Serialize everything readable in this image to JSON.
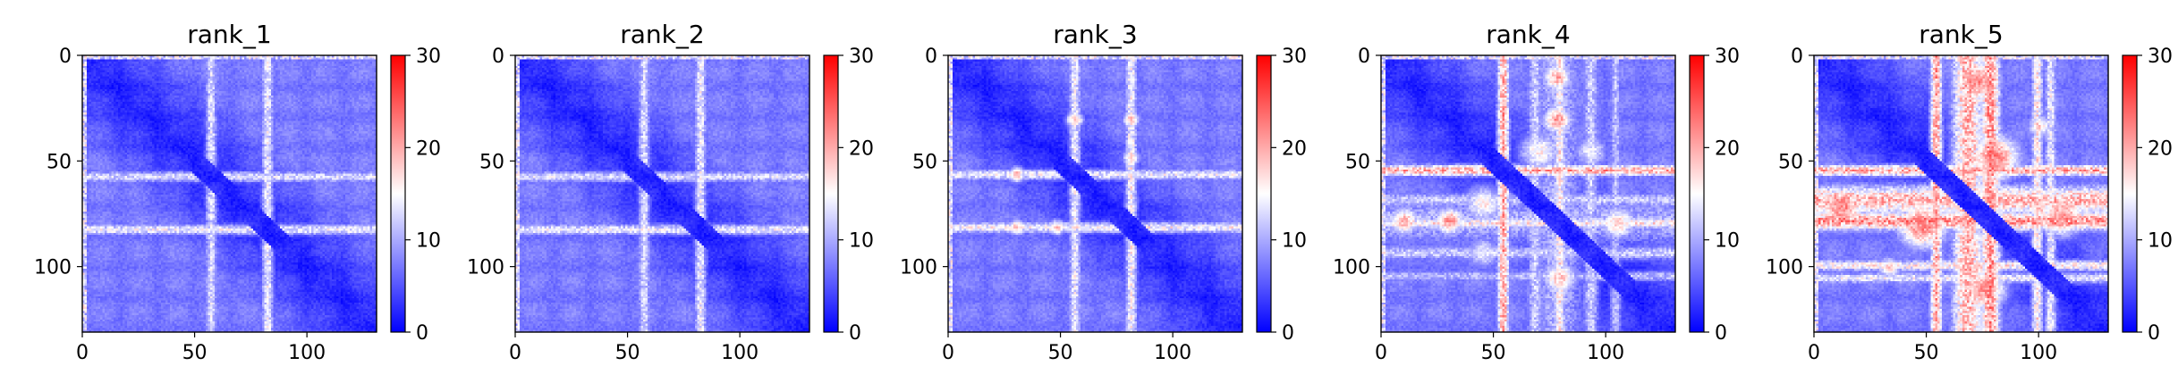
{
  "chart_data": [
    {
      "type": "heatmap",
      "title": "rank_1",
      "xlabel": "",
      "ylabel": "",
      "xlim": [
        0,
        131
      ],
      "ylim": [
        131,
        0
      ],
      "x_ticks": [
        "0",
        "50",
        "100"
      ],
      "y_ticks": [
        "0",
        "50",
        "100"
      ],
      "colorbar": {
        "min": 0,
        "max": 30,
        "ticks": [
          "0",
          "10",
          "20",
          "30"
        ],
        "colormap": "bwr"
      },
      "bands": [
        {
          "center": 57,
          "width": 3,
          "value": 13
        },
        {
          "center": 82,
          "width": 3,
          "value": 14
        }
      ],
      "vbands": [],
      "blobs": []
    },
    {
      "type": "heatmap",
      "title": "rank_2",
      "xlabel": "",
      "ylabel": "",
      "xlim": [
        0,
        131
      ],
      "ylim": [
        131,
        0
      ],
      "x_ticks": [
        "0",
        "50",
        "100"
      ],
      "y_ticks": [
        "0",
        "50",
        "100"
      ],
      "colorbar": {
        "min": 0,
        "max": 30,
        "ticks": [
          "0",
          "10",
          "20",
          "30"
        ],
        "colormap": "bwr"
      },
      "bands": [
        {
          "center": 57,
          "width": 3,
          "value": 13
        },
        {
          "center": 82,
          "width": 3,
          "value": 14
        }
      ],
      "vbands": [],
      "blobs": []
    },
    {
      "type": "heatmap",
      "title": "rank_3",
      "xlabel": "",
      "ylabel": "",
      "xlim": [
        0,
        131
      ],
      "ylim": [
        131,
        0
      ],
      "x_ticks": [
        "0",
        "50",
        "100"
      ],
      "y_ticks": [
        "0",
        "50",
        "100"
      ],
      "colorbar": {
        "min": 0,
        "max": 30,
        "ticks": [
          "0",
          "10",
          "20",
          "30"
        ],
        "colormap": "bwr"
      },
      "bands": [
        {
          "center": 56,
          "width": 3,
          "value": 14
        },
        {
          "center": 81,
          "width": 3,
          "value": 15
        }
      ],
      "vbands": [],
      "blobs": [
        {
          "x": 30,
          "y": 56,
          "r": 3,
          "value": 19
        },
        {
          "x": 30,
          "y": 81,
          "r": 3,
          "value": 19
        },
        {
          "x": 48,
          "y": 81,
          "r": 3,
          "value": 18
        }
      ]
    },
    {
      "type": "heatmap",
      "title": "rank_4",
      "xlabel": "",
      "ylabel": "",
      "xlim": [
        0,
        131
      ],
      "ylim": [
        131,
        0
      ],
      "x_ticks": [
        "0",
        "50",
        "100"
      ],
      "y_ticks": [
        "0",
        "50",
        "100"
      ],
      "colorbar": {
        "min": 0,
        "max": 30,
        "ticks": [
          "0",
          "10",
          "20",
          "30"
        ],
        "colormap": "bwr"
      },
      "bands": [
        {
          "center": 54,
          "width": 3,
          "value": 20
        },
        {
          "center": 68,
          "width": 4,
          "value": 12
        },
        {
          "center": 79,
          "width": 3,
          "value": 16
        },
        {
          "center": 93,
          "width": 4,
          "value": 12
        },
        {
          "center": 104,
          "width": 3,
          "value": 11
        }
      ],
      "vbands": [
        {
          "center": 78,
          "width": 14,
          "value": 11
        }
      ],
      "blobs": [
        {
          "x": 10,
          "y": 78,
          "r": 5,
          "value": 20
        },
        {
          "x": 30,
          "y": 78,
          "r": 5,
          "value": 21
        },
        {
          "x": 45,
          "y": 70,
          "r": 7,
          "value": 16
        },
        {
          "x": 45,
          "y": 93,
          "r": 6,
          "value": 14
        },
        {
          "x": 105,
          "y": 79,
          "r": 6,
          "value": 18
        }
      ]
    },
    {
      "type": "heatmap",
      "title": "rank_5",
      "xlabel": "",
      "ylabel": "",
      "xlim": [
        0,
        131
      ],
      "ylim": [
        131,
        0
      ],
      "x_ticks": [
        "0",
        "50",
        "100"
      ],
      "y_ticks": [
        "0",
        "50",
        "100"
      ],
      "colorbar": {
        "min": 0,
        "max": 30,
        "ticks": [
          "0",
          "10",
          "20",
          "30"
        ],
        "colormap": "bwr"
      },
      "bands": [
        {
          "center": 54,
          "width": 3,
          "value": 20
        },
        {
          "center": 68,
          "width": 8,
          "value": 19
        },
        {
          "center": 78,
          "width": 5,
          "value": 21
        },
        {
          "center": 99,
          "width": 3,
          "value": 16
        },
        {
          "center": 105,
          "width": 3,
          "value": 14
        }
      ],
      "vbands": [
        {
          "center": 74,
          "width": 12,
          "value": 12
        }
      ],
      "blobs": [
        {
          "x": 12,
          "y": 72,
          "r": 8,
          "value": 22
        },
        {
          "x": 48,
          "y": 80,
          "r": 9,
          "value": 22
        },
        {
          "x": 33,
          "y": 100,
          "r": 4,
          "value": 18
        },
        {
          "x": 72,
          "y": 100,
          "r": 4,
          "value": 19
        },
        {
          "x": 110,
          "y": 75,
          "r": 8,
          "value": 21
        }
      ]
    }
  ]
}
